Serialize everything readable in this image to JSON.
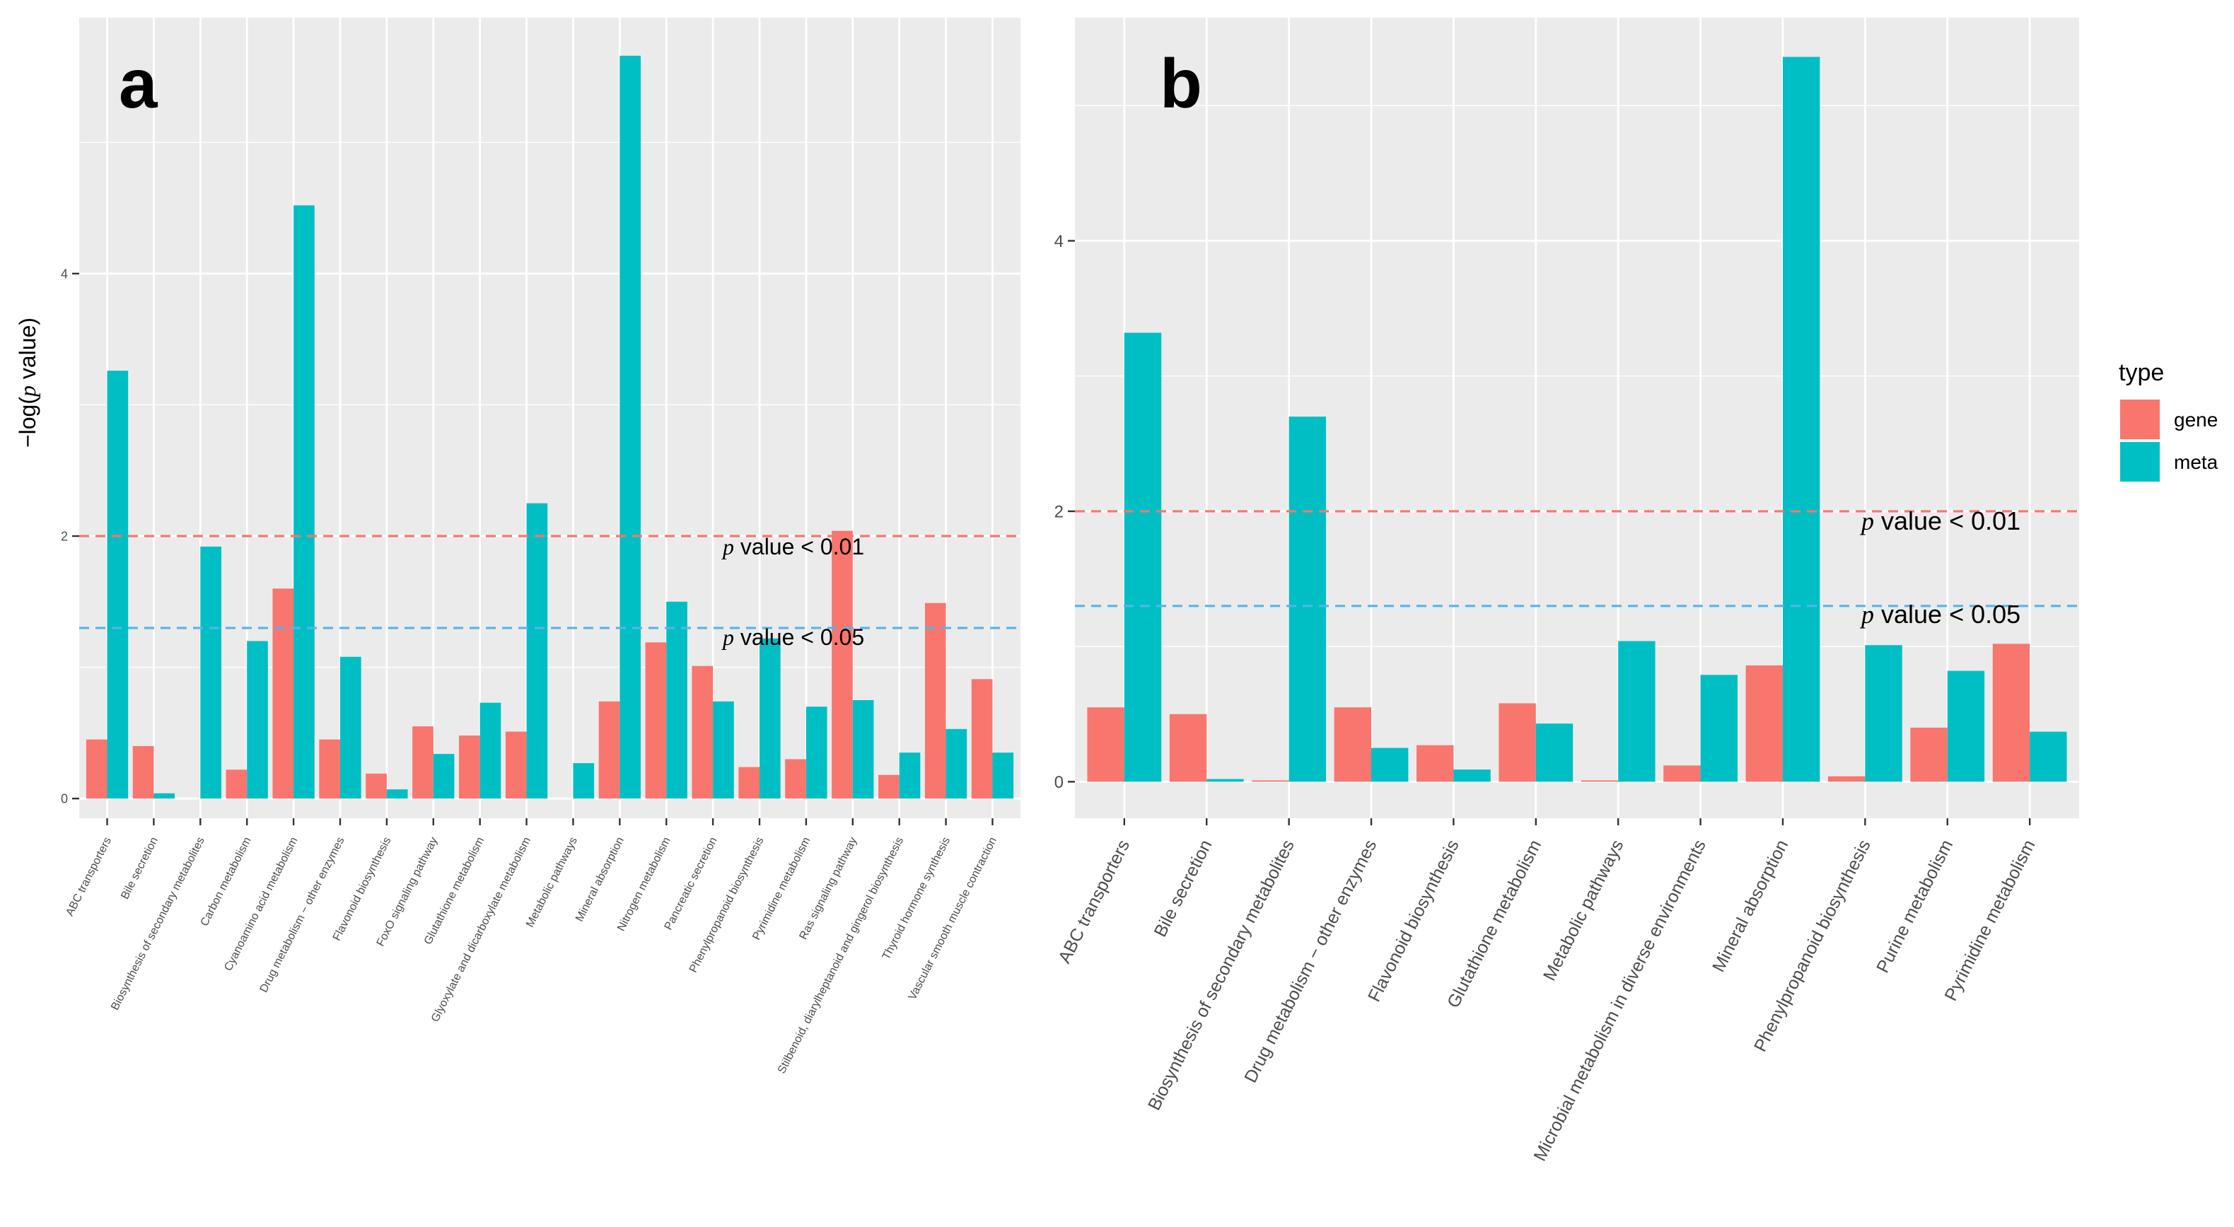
{
  "figure": {
    "legend": {
      "title": "type",
      "entries": [
        {
          "key": "gene",
          "label": "gene",
          "color": "#F8766D"
        },
        {
          "key": "meta",
          "label": "meta",
          "color": "#00BFC4"
        }
      ]
    }
  },
  "chart_data": [
    {
      "panel_label": "a",
      "type": "bar",
      "ylabel_prefix": "−log(",
      "ylabel_p": "p",
      "ylabel_suffix": "  value)",
      "xlabel": "",
      "ylim": [
        -0.15,
        5.95
      ],
      "yticks": [
        0,
        2,
        4
      ],
      "grid": true,
      "categories": [
        "ABC transporters",
        "Bile secretion",
        "Biosynthesis of secondary metabolites",
        "Carbon metabolism",
        "Cyanoamino acid metabolism",
        "Drug metabolism − other enzymes",
        "Flavonoid biosynthesis",
        "FoxO signaling pathway",
        "Glutathione metabolism",
        "Glyoxylate and dicarboxylate metabolism",
        "Metabolic pathways",
        "Mineral absorption",
        "Nitrogen metabolism",
        "Pancreatic secretion",
        "Phenylpropanoid biosynthesis",
        "Pyrimidine metabolism",
        "Ras signaling pathway",
        "Stilbenoid, diarylheptanoid and gingerol biosynthesis",
        "Thyroid hormone synthesis",
        "Vascular smooth muscle contraction"
      ],
      "series": [
        {
          "name": "gene",
          "values": [
            0.45,
            0.4,
            0.0,
            0.22,
            1.6,
            0.45,
            0.19,
            0.55,
            0.48,
            0.51,
            0.0,
            0.74,
            1.19,
            1.01,
            0.24,
            0.3,
            2.04,
            0.18,
            1.49,
            0.91
          ]
        },
        {
          "name": "meta",
          "values": [
            3.26,
            0.04,
            1.92,
            1.2,
            4.52,
            1.08,
            0.07,
            0.34,
            0.73,
            2.25,
            0.27,
            5.66,
            1.5,
            0.74,
            1.22,
            0.7,
            0.75,
            0.35,
            0.53,
            0.35
          ]
        }
      ],
      "thresholds": [
        {
          "y": 2.0,
          "label_suffix": " value < 0.01",
          "label_p": "p",
          "color": "#F8766D"
        },
        {
          "y": 1.3,
          "label_suffix": " value < 0.05",
          "label_p": "p",
          "color": "#56B4E9"
        }
      ]
    },
    {
      "panel_label": "b",
      "type": "bar",
      "ylim": [
        -0.27,
        5.65
      ],
      "yticks": [
        0,
        2,
        4
      ],
      "grid": true,
      "categories": [
        "ABC transporters",
        "Bile secretion",
        "Biosynthesis of secondary metabolites",
        "Drug metabolism − other enzymes",
        "Flavonoid biosynthesis",
        "Glutathione metabolism",
        "Metabolic pathways",
        "Microbial metabolism in diverse environments",
        "Mineral absorption",
        "Phenylpropanoid biosynthesis",
        "Purine metabolism",
        "Pyrimidine metabolism"
      ],
      "series": [
        {
          "name": "gene",
          "values": [
            0.55,
            0.5,
            0.01,
            0.55,
            0.27,
            0.58,
            0.01,
            0.12,
            0.86,
            0.04,
            0.4,
            1.02
          ]
        },
        {
          "name": "meta",
          "values": [
            3.32,
            0.02,
            2.7,
            0.25,
            0.09,
            0.43,
            1.04,
            0.79,
            5.36,
            1.01,
            0.82,
            0.37
          ]
        }
      ],
      "thresholds": [
        {
          "y": 2.0,
          "label_suffix": " value < 0.01",
          "label_p": "p",
          "color": "#F8766D"
        },
        {
          "y": 1.3,
          "label_suffix": " value < 0.05",
          "label_p": "p",
          "color": "#56B4E9"
        }
      ]
    }
  ]
}
